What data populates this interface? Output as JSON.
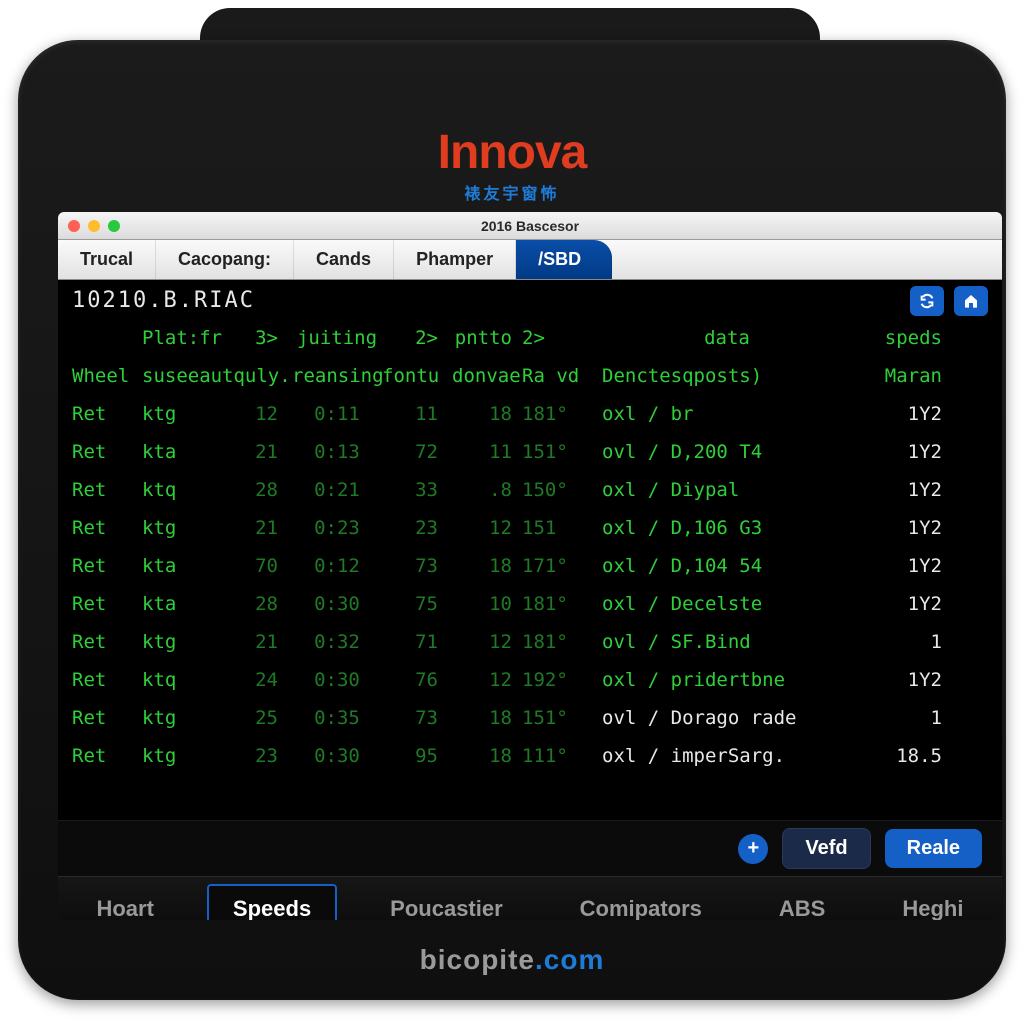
{
  "brand": {
    "name": "Innova",
    "sub": "裱友宇窗怖",
    "footer_a": "bicopite",
    "footer_b": ".com"
  },
  "window": {
    "title": "2016 Bascesor"
  },
  "toptabs": [
    {
      "label": "Trucal"
    },
    {
      "label": "Cacopang:"
    },
    {
      "label": "Cands"
    },
    {
      "label": "Phamper"
    },
    {
      "label": "/SBD",
      "active": true
    }
  ],
  "term": {
    "code": "10210.B.RIAC",
    "header1": {
      "a": "",
      "b": "Plat:from",
      "c": "3>",
      "d": "juiting",
      "e": "2>",
      "f": "pntto",
      "g": "2>",
      "h": "data",
      "i": "speds"
    },
    "header2": {
      "a": "Wheel",
      "b": "suseeau",
      "c": "tquly.",
      "d": "reansing",
      "e": "fontu",
      "f": "donvae",
      "g": "Ra vd",
      "h": "Denctesqposts)",
      "i": "Maran"
    },
    "rows": [
      {
        "a": "Ret",
        "b": "ktg",
        "c": "12",
        "d": "0:11",
        "e": "11",
        "f": "18",
        "g": "181°",
        "h": "oxl / br",
        "i": "1Y2"
      },
      {
        "a": "Ret",
        "b": "kta",
        "c": "21",
        "d": "0:13",
        "e": "72",
        "f": "11",
        "g": "151°",
        "h": "ovl / D,200 T4",
        "i": "1Y2"
      },
      {
        "a": "Ret",
        "b": "ktq",
        "c": "28",
        "d": "0:21",
        "e": "33",
        "f": ".8",
        "g": "150°",
        "h": "oxl / Diypal",
        "i": "1Y2"
      },
      {
        "a": "Ret",
        "b": "ktg",
        "c": "21",
        "d": "0:23",
        "e": "23",
        "f": "12",
        "g": "151",
        "h": "oxl / D,106 G3",
        "i": "1Y2"
      },
      {
        "a": "Ret",
        "b": "kta",
        "c": "70",
        "d": "0:12",
        "e": "73",
        "f": "18",
        "g": "171°",
        "h": "oxl / D,104 54",
        "i": "1Y2"
      },
      {
        "a": "Ret",
        "b": "kta",
        "c": "28",
        "d": "0:30",
        "e": "75",
        "f": "10",
        "g": "181°",
        "h": "oxl / Decelste",
        "i": "1Y2"
      },
      {
        "a": "Ret",
        "b": "ktg",
        "c": "21",
        "d": "0:32",
        "e": "71",
        "f": "12",
        "g": "181°",
        "h": "ovl / SF.Bind",
        "i": "1"
      },
      {
        "a": "Ret",
        "b": "ktq",
        "c": "24",
        "d": "0:30",
        "e": "76",
        "f": "12",
        "g": "192°",
        "h": "oxl / pridertbne",
        "i": "1Y2"
      },
      {
        "a": "Ret",
        "b": "ktg",
        "c": "25",
        "d": "0:35",
        "e": "73",
        "f": "18",
        "g": "151°",
        "h": "ovl / Dorago rade",
        "i": "1"
      },
      {
        "a": "Ret",
        "b": "ktg",
        "c": "23",
        "d": "0:30",
        "e": "95",
        "f": "18",
        "g": "111°",
        "h": "oxl / imperSarg.",
        "i": "18.5"
      }
    ]
  },
  "actions": {
    "vefd": "Vefd",
    "reale": "Reale"
  },
  "bottomnav": [
    {
      "label": "Hoart"
    },
    {
      "label": "Speeds",
      "active": true
    },
    {
      "label": "Poucastier"
    },
    {
      "label": "Comipators"
    },
    {
      "label": "ABS"
    },
    {
      "label": "Heghi"
    }
  ],
  "colors": {
    "brand": "#e03c1f",
    "brand_sub": "#1e7bd6",
    "accent": "#1560c7",
    "term_green": "#2fcf3a",
    "term_bg": "#000000"
  }
}
